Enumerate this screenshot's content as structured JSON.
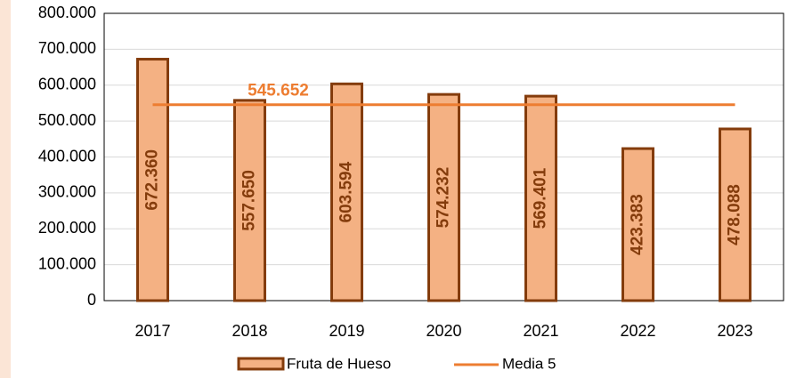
{
  "chart_data": {
    "type": "bar",
    "categories": [
      "2017",
      "2018",
      "2019",
      "2020",
      "2021",
      "2022",
      "2023"
    ],
    "series": [
      {
        "name": "Fruta de Hueso",
        "type": "bar",
        "color": "#f4b183",
        "edge_color": "#843c0c",
        "values": [
          672360,
          557650,
          603594,
          574232,
          569401,
          423383,
          478088
        ],
        "value_labels": [
          "672.360",
          "557.650",
          "603.594",
          "574.232",
          "569.401",
          "423.383",
          "478.088"
        ]
      },
      {
        "name": "Media 5",
        "type": "line",
        "color": "#ed7d31",
        "value": 545652,
        "value_label": "545.652"
      }
    ],
    "ylim": [
      0,
      800000
    ],
    "yticks": [
      0,
      {
        "value": 100000,
        "label": "100.000"
      },
      {
        "value": 200000,
        "label": "200.000"
      },
      {
        "value": 300000,
        "label": "300.000"
      },
      {
        "value": 400000,
        "label": "400.000"
      },
      {
        "value": 500000,
        "label": "500.000"
      },
      {
        "value": 600000,
        "label": "600.000"
      },
      {
        "value": 700000,
        "label": "700.000"
      },
      {
        "value": 800000,
        "label": "800.000"
      }
    ],
    "grid": true,
    "legend": "bottom"
  }
}
